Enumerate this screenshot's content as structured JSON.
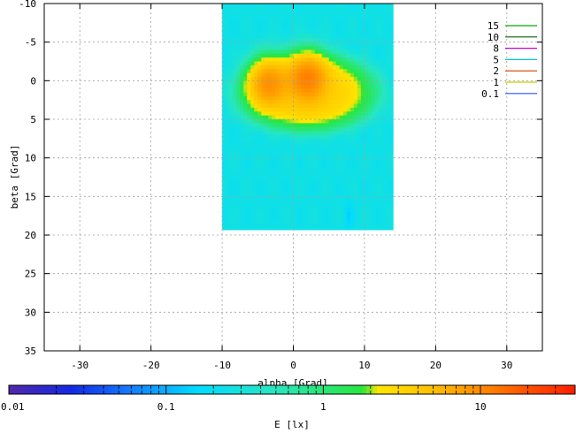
{
  "chart_data": {
    "type": "heatmap",
    "xlabel": "alpha [Grad]",
    "ylabel": "beta [Grad]",
    "xlim": [
      -35,
      35
    ],
    "ylim": [
      35,
      -10
    ],
    "y_axis_inverted": true,
    "xticks": [
      -30,
      -20,
      -10,
      0,
      10,
      20,
      30
    ],
    "yticks": [
      -10,
      -5,
      0,
      5,
      10,
      15,
      20,
      25,
      30,
      35
    ],
    "grid": true,
    "legend_position": "top-right",
    "data_extent": {
      "alpha": [
        -10,
        14
      ],
      "beta": [
        -10,
        19.3
      ]
    },
    "background_level": 0.25,
    "peaks": [
      {
        "alpha": -3.5,
        "beta": 0.3,
        "value": 12
      },
      {
        "alpha": 2.0,
        "beta": -0.3,
        "value": 15
      }
    ],
    "contours": [
      {
        "level": "15",
        "color": "#00aa00"
      },
      {
        "level": "10",
        "color": "#006600"
      },
      {
        "level": "8",
        "color": "#cc00cc"
      },
      {
        "level": "5",
        "color": "#00cccc"
      },
      {
        "level": "2",
        "color": "#cc4400"
      },
      {
        "level": "1",
        "color": "#cccc00"
      },
      {
        "level": "0.1",
        "color": "#2255ff"
      }
    ],
    "colorbar": {
      "label": "E [lx]",
      "scale": "log",
      "range": [
        0.01,
        40
      ],
      "ticks": [
        "0.01",
        "0.1",
        "1",
        "10"
      ]
    }
  }
}
